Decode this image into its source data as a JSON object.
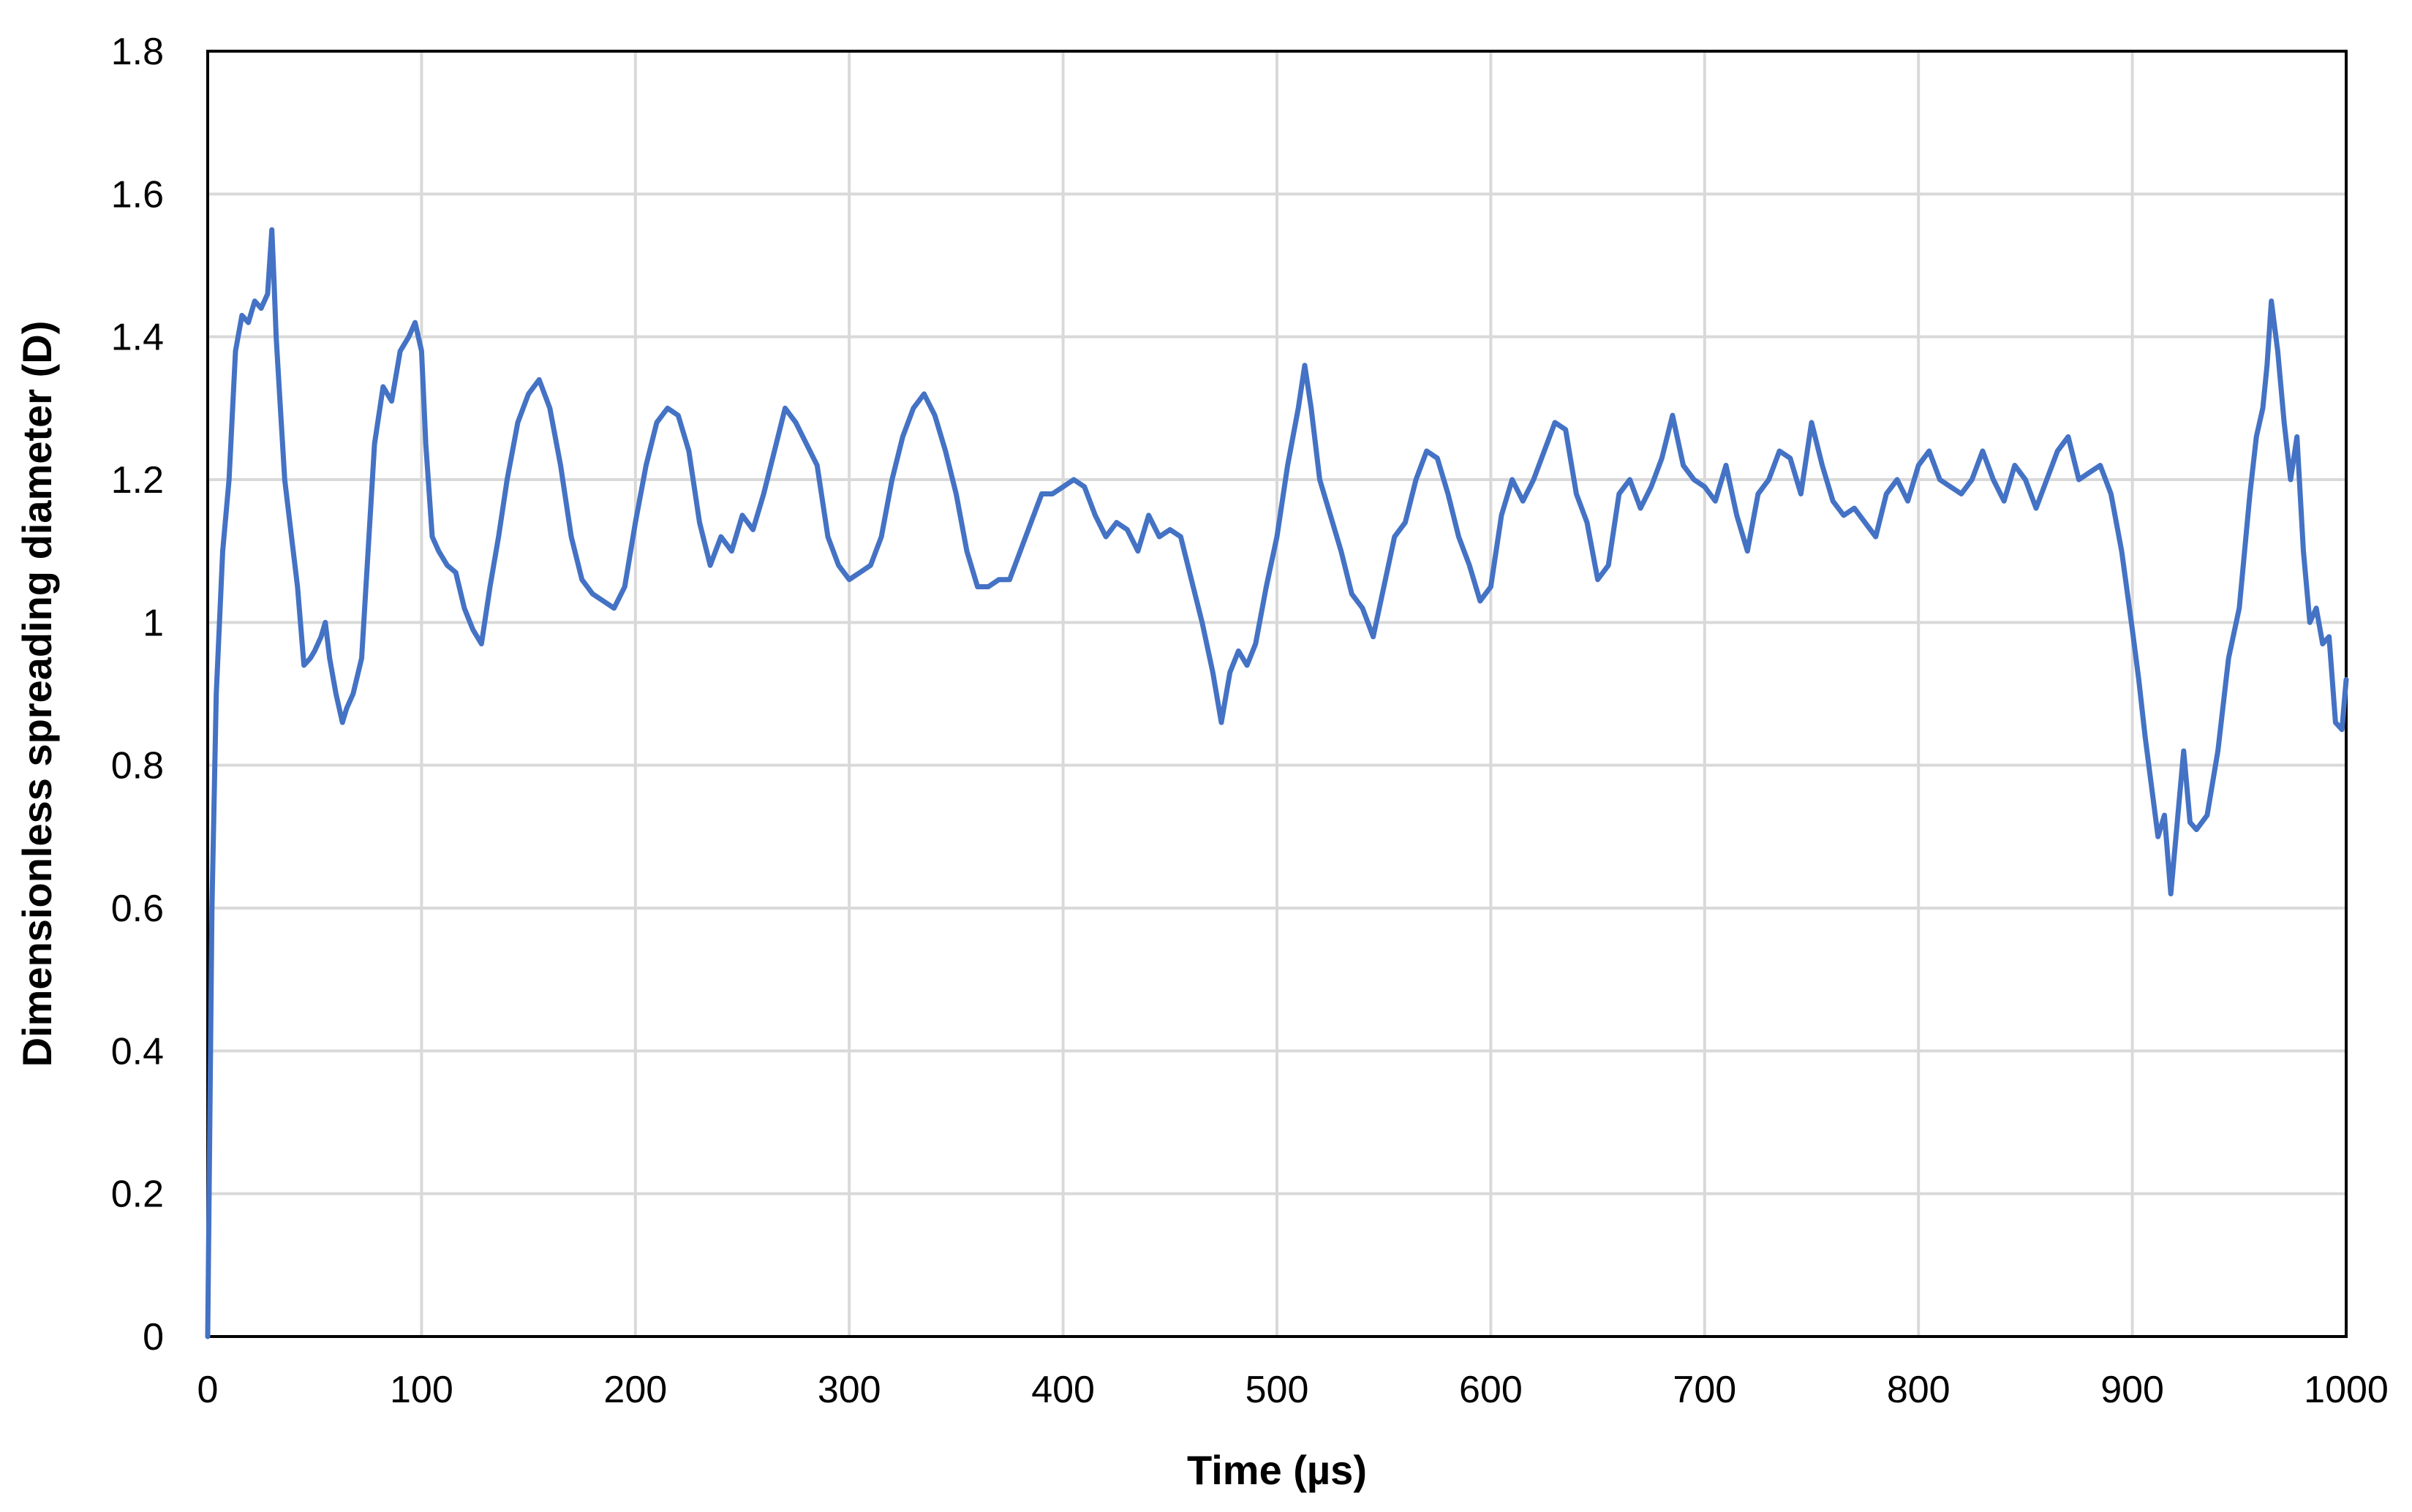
{
  "chart_data": {
    "type": "line",
    "title": "",
    "xlabel": "Time (µs)",
    "ylabel": "Dimensionless spreading diameter (D)",
    "xlim": [
      0,
      1000
    ],
    "ylim": [
      0,
      1.8
    ],
    "x_ticks": [
      0,
      100,
      200,
      300,
      400,
      500,
      600,
      700,
      800,
      900,
      1000
    ],
    "x_tick_labels": [
      "0",
      "100",
      "200",
      "300",
      "400",
      "500",
      "600",
      "700",
      "800",
      "900",
      "1000"
    ],
    "y_ticks": [
      0,
      0.2,
      0.4,
      0.6,
      0.8,
      1.0,
      1.2,
      1.4,
      1.6,
      1.8
    ],
    "y_tick_labels": [
      "0",
      "0.2",
      "0.4",
      "0.6",
      "0.8",
      "1",
      "1.2",
      "1.4",
      "1.6",
      "1.8"
    ],
    "grid": true,
    "legend": "none",
    "series": [
      {
        "name": "D",
        "color": "#4472c4",
        "x": [
          0,
          2,
          4,
          7,
          10,
          13,
          16,
          19,
          22,
          25,
          28,
          30,
          31,
          32,
          34,
          36,
          38,
          42,
          45,
          48,
          50,
          53,
          55,
          57,
          60,
          63,
          65,
          68,
          72,
          75,
          78,
          82,
          86,
          90,
          94,
          97,
          100,
          102,
          105,
          108,
          112,
          116,
          120,
          124,
          128,
          132,
          136,
          140,
          145,
          150,
          155,
          160,
          165,
          170,
          175,
          180,
          185,
          190,
          195,
          200,
          205,
          210,
          215,
          220,
          225,
          230,
          235,
          240,
          245,
          250,
          255,
          260,
          265,
          270,
          275,
          280,
          285,
          290,
          295,
          300,
          305,
          310,
          315,
          320,
          325,
          330,
          335,
          340,
          345,
          350,
          355,
          360,
          365,
          370,
          375,
          380,
          385,
          390,
          395,
          400,
          405,
          410,
          415,
          420,
          425,
          430,
          435,
          440,
          445,
          450,
          455,
          460,
          465,
          470,
          474,
          478,
          482,
          486,
          490,
          495,
          500,
          505,
          510,
          513,
          516,
          520,
          525,
          530,
          535,
          540,
          545,
          550,
          555,
          560,
          565,
          570,
          575,
          580,
          585,
          590,
          595,
          600,
          605,
          610,
          615,
          620,
          625,
          630,
          635,
          640,
          645,
          650,
          655,
          660,
          665,
          670,
          675,
          680,
          685,
          690,
          695,
          700,
          705,
          710,
          715,
          720,
          725,
          730,
          735,
          740,
          745,
          750,
          755,
          760,
          765,
          770,
          775,
          780,
          785,
          790,
          795,
          800,
          805,
          810,
          815,
          820,
          825,
          830,
          835,
          840,
          845,
          850,
          855,
          860,
          865,
          870,
          875,
          880,
          885,
          890,
          895,
          900,
          903,
          906,
          909,
          912,
          915,
          918,
          921,
          924,
          927,
          930,
          935,
          940,
          945,
          950,
          955,
          958,
          961,
          963,
          965,
          968,
          971,
          974,
          977,
          980,
          983,
          986,
          989,
          992,
          995,
          998,
          1000
        ],
        "y": [
          0,
          0.6,
          0.9,
          1.1,
          1.2,
          1.38,
          1.43,
          1.42,
          1.45,
          1.44,
          1.46,
          1.55,
          1.48,
          1.4,
          1.3,
          1.2,
          1.15,
          1.05,
          0.94,
          0.95,
          0.96,
          0.98,
          1.0,
          0.95,
          0.9,
          0.86,
          0.88,
          0.9,
          0.95,
          1.1,
          1.25,
          1.33,
          1.31,
          1.38,
          1.4,
          1.42,
          1.38,
          1.25,
          1.12,
          1.1,
          1.08,
          1.07,
          1.02,
          0.99,
          0.97,
          1.05,
          1.12,
          1.2,
          1.28,
          1.32,
          1.34,
          1.3,
          1.22,
          1.12,
          1.06,
          1.04,
          1.03,
          1.02,
          1.05,
          1.14,
          1.22,
          1.28,
          1.3,
          1.29,
          1.24,
          1.14,
          1.08,
          1.12,
          1.1,
          1.15,
          1.13,
          1.18,
          1.24,
          1.3,
          1.28,
          1.25,
          1.22,
          1.12,
          1.08,
          1.06,
          1.07,
          1.08,
          1.12,
          1.2,
          1.26,
          1.3,
          1.32,
          1.29,
          1.24,
          1.18,
          1.1,
          1.05,
          1.05,
          1.06,
          1.06,
          1.1,
          1.14,
          1.18,
          1.18,
          1.19,
          1.2,
          1.19,
          1.15,
          1.12,
          1.14,
          1.13,
          1.1,
          1.15,
          1.12,
          1.13,
          1.12,
          1.06,
          1.0,
          0.93,
          0.86,
          0.93,
          0.96,
          0.94,
          0.97,
          1.05,
          1.12,
          1.22,
          1.3,
          1.36,
          1.3,
          1.2,
          1.15,
          1.1,
          1.04,
          1.02,
          0.98,
          1.05,
          1.12,
          1.14,
          1.2,
          1.24,
          1.23,
          1.18,
          1.12,
          1.08,
          1.03,
          1.05,
          1.15,
          1.2,
          1.17,
          1.2,
          1.24,
          1.28,
          1.27,
          1.18,
          1.14,
          1.06,
          1.08,
          1.18,
          1.2,
          1.16,
          1.19,
          1.23,
          1.29,
          1.22,
          1.2,
          1.19,
          1.17,
          1.22,
          1.15,
          1.1,
          1.18,
          1.2,
          1.24,
          1.23,
          1.18,
          1.28,
          1.22,
          1.17,
          1.15,
          1.16,
          1.14,
          1.12,
          1.18,
          1.2,
          1.17,
          1.22,
          1.24,
          1.2,
          1.19,
          1.18,
          1.2,
          1.24,
          1.2,
          1.17,
          1.22,
          1.2,
          1.16,
          1.2,
          1.24,
          1.26,
          1.2,
          1.21,
          1.22,
          1.18,
          1.1,
          0.99,
          0.92,
          0.84,
          0.77,
          0.7,
          0.73,
          0.62,
          0.72,
          0.82,
          0.72,
          0.71,
          0.73,
          0.82,
          0.95,
          1.02,
          1.18,
          1.26,
          1.3,
          1.36,
          1.45,
          1.38,
          1.28,
          1.2,
          1.26,
          1.1,
          1.0,
          1.02,
          0.97,
          0.98,
          0.86,
          0.85,
          0.92
        ]
      }
    ]
  }
}
